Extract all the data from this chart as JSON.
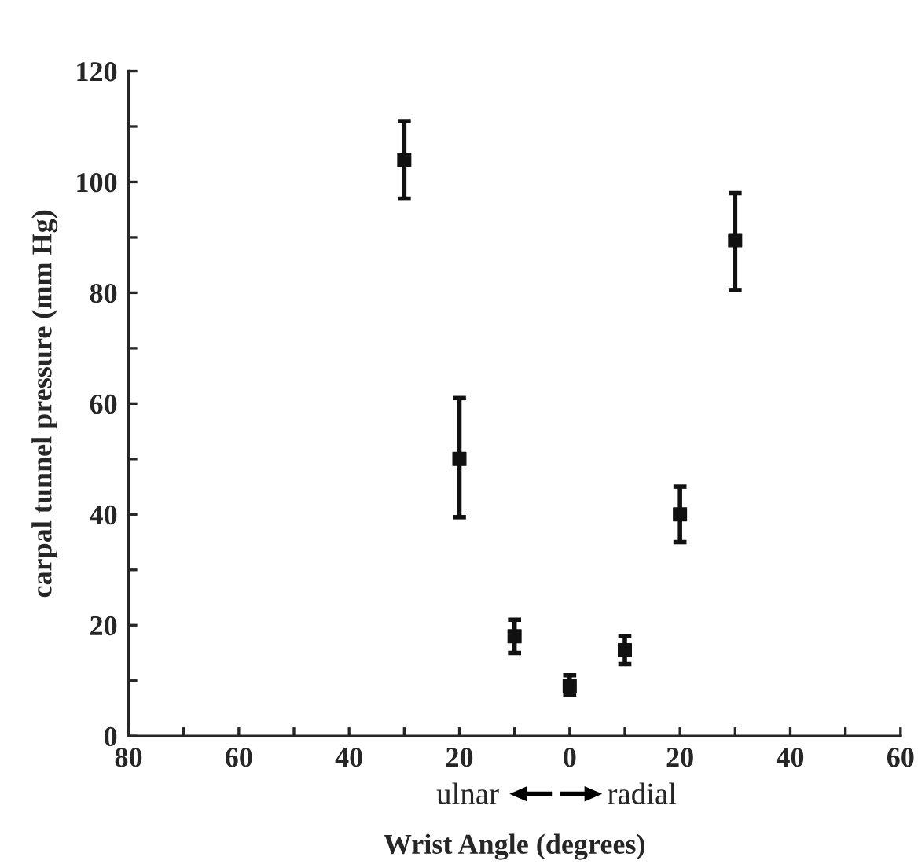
{
  "chart_data": {
    "type": "scatter",
    "xlabel": "Wrist Angle (degrees)",
    "ylabel": "carpal tunnel pressure (mm Hg)",
    "x": [
      -30,
      -20,
      -10,
      0,
      10,
      20,
      30
    ],
    "values": [
      104,
      50,
      18,
      9,
      15.5,
      40,
      89.5
    ],
    "errors": [
      [
        97,
        111
      ],
      [
        39.5,
        61
      ],
      [
        15,
        21
      ],
      [
        7.5,
        11
      ],
      [
        13,
        18
      ],
      [
        35,
        45
      ],
      [
        80.5,
        98
      ]
    ],
    "color": "#111111",
    "marker": "square",
    "xlim": [
      -80,
      60
    ],
    "ylim": [
      0,
      120
    ],
    "xticks": [
      {
        "value": -80,
        "label": "80"
      },
      {
        "value": -70,
        "label": null
      },
      {
        "value": -60,
        "label": "60"
      },
      {
        "value": -50,
        "label": null
      },
      {
        "value": -40,
        "label": "40"
      },
      {
        "value": -30,
        "label": null
      },
      {
        "value": -20,
        "label": "20"
      },
      {
        "value": -10,
        "label": null
      },
      0,
      {
        "value": 10,
        "label": null
      },
      20,
      {
        "value": 30,
        "label": null
      },
      40,
      {
        "value": 50,
        "label": null
      },
      60
    ],
    "yticks": [
      0,
      {
        "value": 10,
        "label": null
      },
      20,
      {
        "value": 30,
        "label": null
      },
      40,
      {
        "value": 50,
        "label": null
      },
      60,
      {
        "value": 70,
        "label": null
      },
      80,
      {
        "value": 90,
        "label": null
      },
      100,
      {
        "value": 110,
        "label": null
      },
      120
    ],
    "annotations": [
      "ulnar",
      "radial"
    ],
    "grid": false,
    "legend": false
  }
}
